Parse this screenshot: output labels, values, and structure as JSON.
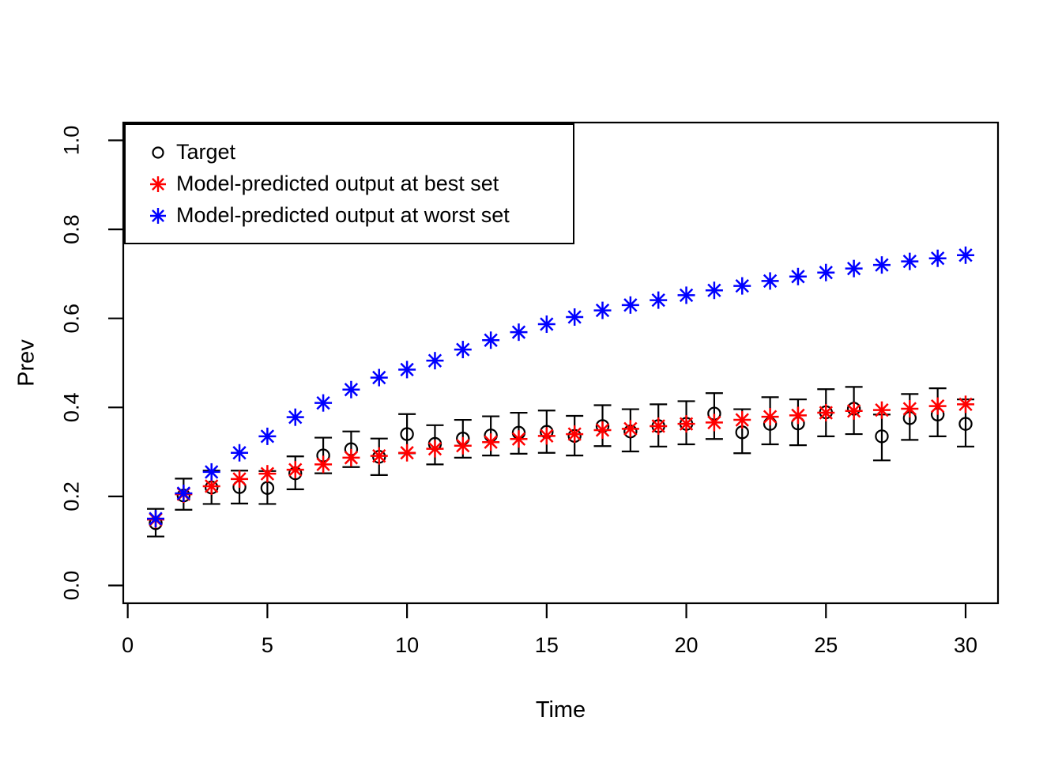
{
  "figure": {
    "background": "#ffffff",
    "axis_color": "#000000",
    "xlabel": "Time",
    "ylabel": "Prev"
  },
  "legend": {
    "position": "topleft",
    "items": [
      {
        "label": "Target",
        "marker": "circle",
        "color": "#000000"
      },
      {
        "label": "Model-predicted output at best set",
        "marker": "asterisk",
        "color": "#ff0000"
      },
      {
        "label": "Model-predicted output at worst set",
        "marker": "asterisk",
        "color": "#0000ff"
      }
    ]
  },
  "chart_data": {
    "type": "scatter",
    "title": "",
    "xlabel": "Time",
    "ylabel": "Prev",
    "xlim": [
      -0.16,
      31.16
    ],
    "ylim": [
      -0.04,
      1.04
    ],
    "x_ticks": [
      0,
      5,
      10,
      15,
      20,
      25,
      30
    ],
    "y_ticks": [
      "0.0",
      "0.2",
      "0.4",
      "0.6",
      "0.8",
      "1.0"
    ],
    "grid": false,
    "legend_position": "topleft",
    "x": [
      1,
      2,
      3,
      4,
      5,
      6,
      7,
      8,
      9,
      10,
      11,
      12,
      13,
      14,
      15,
      16,
      17,
      18,
      19,
      20,
      21,
      22,
      23,
      24,
      25,
      26,
      27,
      28,
      29,
      30
    ],
    "series": [
      {
        "name": "Target",
        "marker": "circle",
        "color": "#000000",
        "values": [
          0.14,
          0.202,
          0.22,
          0.221,
          0.219,
          0.252,
          0.292,
          0.306,
          0.289,
          0.34,
          0.318,
          0.33,
          0.337,
          0.343,
          0.345,
          0.336,
          0.358,
          0.346,
          0.358,
          0.363,
          0.386,
          0.344,
          0.363,
          0.364,
          0.389,
          0.397,
          0.335,
          0.376,
          0.384,
          0.363
        ],
        "error_low": [
          0.11,
          0.17,
          0.183,
          0.184,
          0.183,
          0.216,
          0.252,
          0.266,
          0.248,
          0.297,
          0.272,
          0.287,
          0.292,
          0.296,
          0.298,
          0.292,
          0.313,
          0.301,
          0.312,
          0.317,
          0.329,
          0.297,
          0.317,
          0.315,
          0.335,
          0.34,
          0.281,
          0.327,
          0.335,
          0.312
        ],
        "error_high": [
          0.172,
          0.24,
          0.258,
          0.258,
          0.257,
          0.29,
          0.332,
          0.346,
          0.33,
          0.385,
          0.36,
          0.372,
          0.38,
          0.388,
          0.393,
          0.381,
          0.405,
          0.396,
          0.407,
          0.414,
          0.432,
          0.396,
          0.423,
          0.418,
          0.441,
          0.446,
          0.384,
          0.43,
          0.443,
          0.418
        ]
      },
      {
        "name": "Model-predicted output at best set",
        "marker": "asterisk",
        "color": "#ff0000",
        "values": [
          0.148,
          0.205,
          0.223,
          0.239,
          0.251,
          0.26,
          0.272,
          0.287,
          0.291,
          0.298,
          0.307,
          0.314,
          0.322,
          0.329,
          0.336,
          0.34,
          0.349,
          0.352,
          0.358,
          0.363,
          0.366,
          0.372,
          0.379,
          0.382,
          0.388,
          0.392,
          0.394,
          0.397,
          0.403,
          0.407
        ]
      },
      {
        "name": "Model-predicted output at worst set",
        "marker": "asterisk",
        "color": "#0000ff",
        "values": [
          0.15,
          0.207,
          0.255,
          0.298,
          0.335,
          0.378,
          0.41,
          0.44,
          0.467,
          0.485,
          0.505,
          0.53,
          0.551,
          0.569,
          0.587,
          0.603,
          0.618,
          0.63,
          0.641,
          0.652,
          0.663,
          0.673,
          0.684,
          0.694,
          0.703,
          0.712,
          0.72,
          0.728,
          0.735,
          0.742
        ]
      }
    ]
  }
}
